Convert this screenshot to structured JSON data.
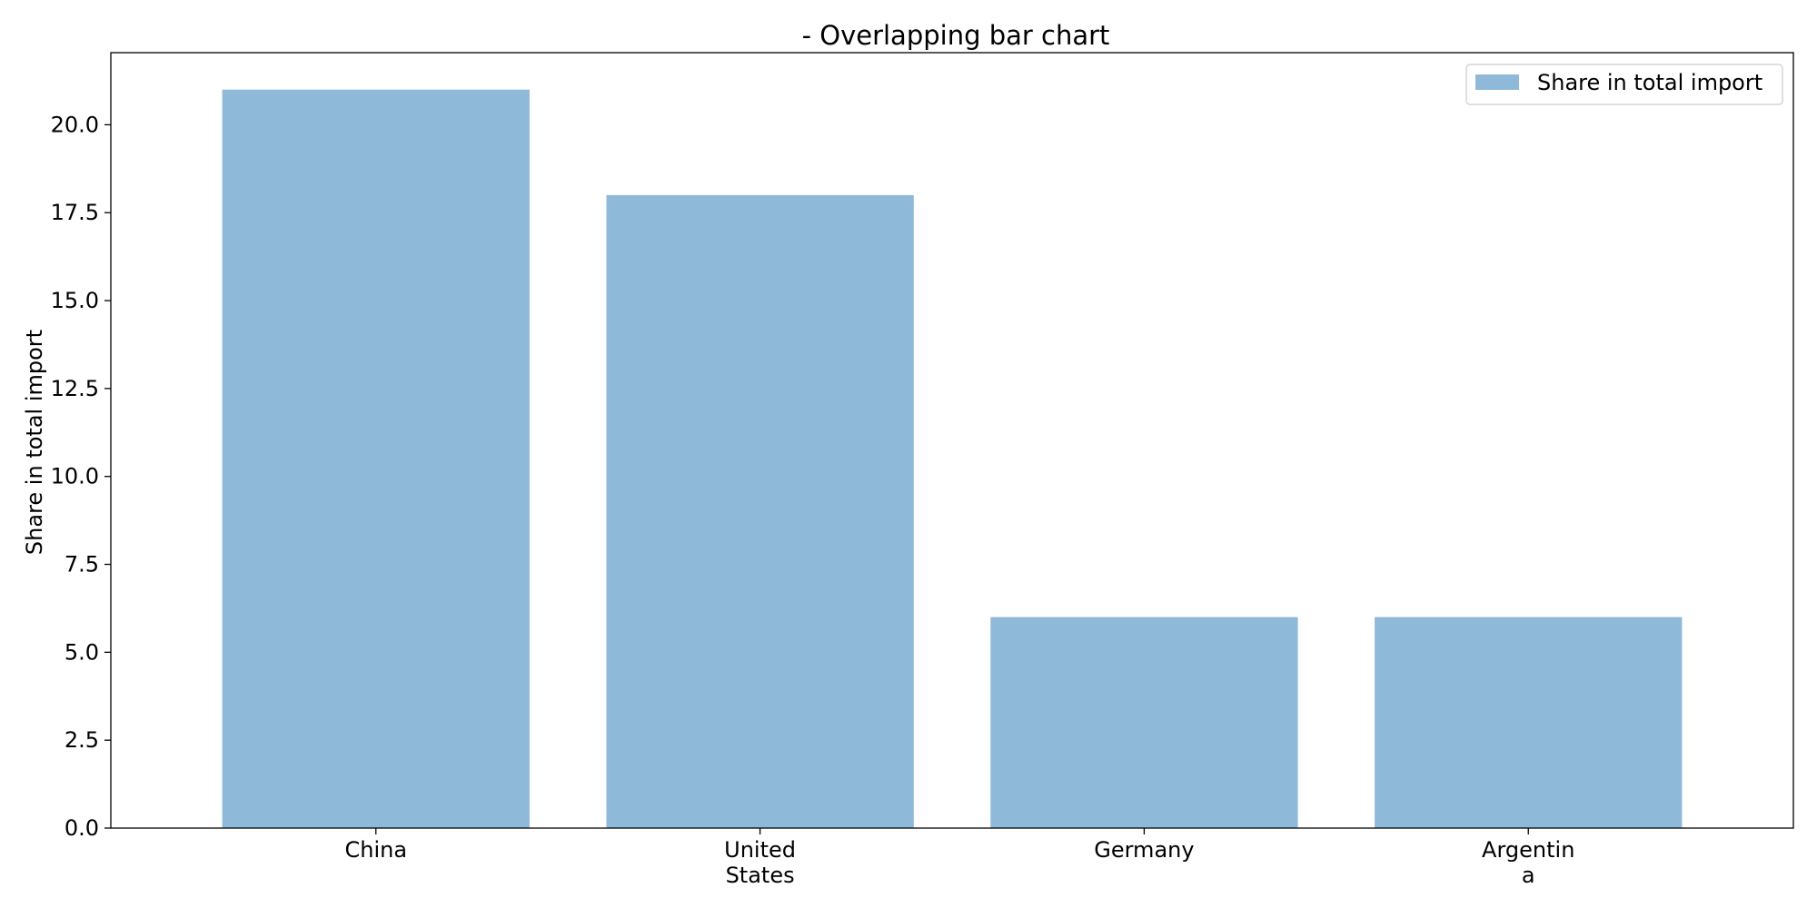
{
  "chart_data": {
    "type": "bar",
    "title": "- Overlapping bar chart",
    "xlabel": "",
    "ylabel": "Share in total import",
    "categories": [
      [
        "China"
      ],
      [
        "United",
        "States"
      ],
      [
        "Germany"
      ],
      [
        "Argentin",
        "a"
      ]
    ],
    "series": [
      {
        "name": "Share in total import",
        "values": [
          21,
          18,
          6,
          6
        ],
        "color": "#8fb9d9"
      }
    ],
    "ylim": [
      0,
      22.05
    ],
    "yticks": [
      "0.0",
      "2.5",
      "5.0",
      "7.5",
      "10.0",
      "12.5",
      "15.0",
      "17.5",
      "20.0"
    ],
    "grid": false,
    "legend_position": "top-right"
  }
}
